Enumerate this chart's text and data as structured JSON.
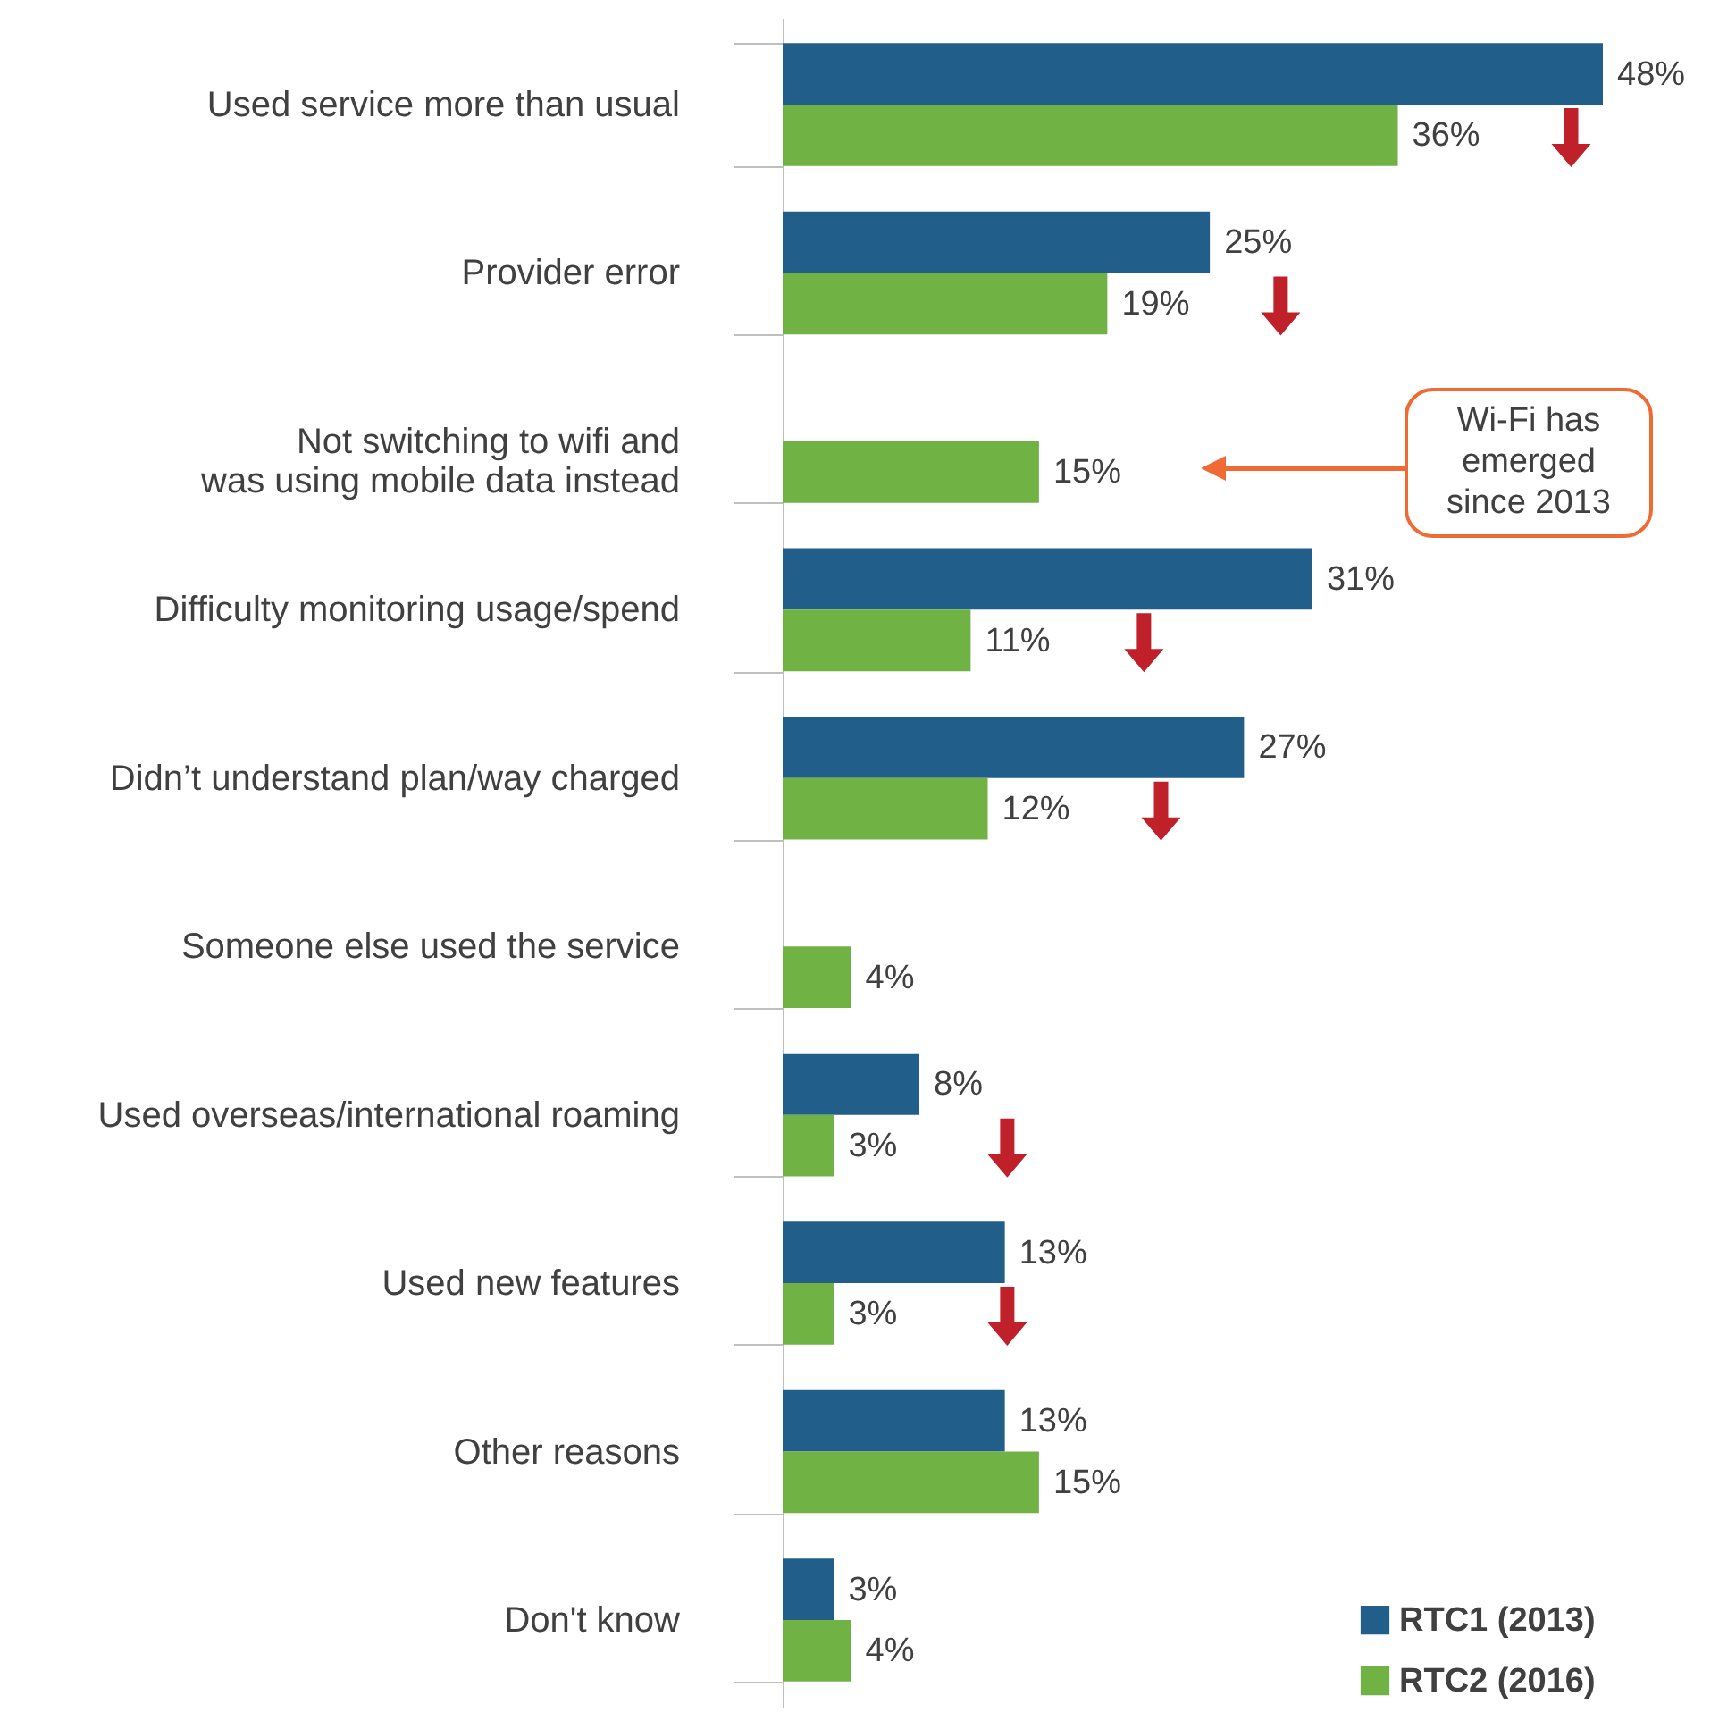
{
  "chart_data": {
    "type": "bar",
    "orientation": "horizontal",
    "legend": "bottom right",
    "categories": [
      "Used service more than usual",
      "Provider error",
      "Not switching to wifi and was using mobile data instead",
      "Difficulty monitoring usage/spend",
      "Didn’t understand plan/way charged",
      "Someone else used the service",
      "Used overseas/international roaming",
      "Used new features",
      "Other reasons",
      "Don't know"
    ],
    "series": [
      {
        "name": "RTC1 (2013)",
        "color": "#215f8a",
        "values": [
          48,
          25,
          null,
          31,
          27,
          null,
          8,
          13,
          13,
          3
        ],
        "value_labels": [
          "48%",
          "25%",
          null,
          "31%",
          "27%",
          null,
          "8%",
          "13%",
          "13%",
          "3%"
        ]
      },
      {
        "name": "RTC2 (2016)",
        "color": "#70b244",
        "values": [
          36,
          19,
          15,
          11,
          12,
          4,
          3,
          3,
          15,
          4
        ],
        "value_labels": [
          "36%",
          "19%",
          "15%",
          "11%",
          "12%",
          "4%",
          "3%",
          "3%",
          "15%",
          "4%"
        ]
      }
    ],
    "annotations": [
      "Wi-Fi has emerged since 2013"
    ]
  }
}
